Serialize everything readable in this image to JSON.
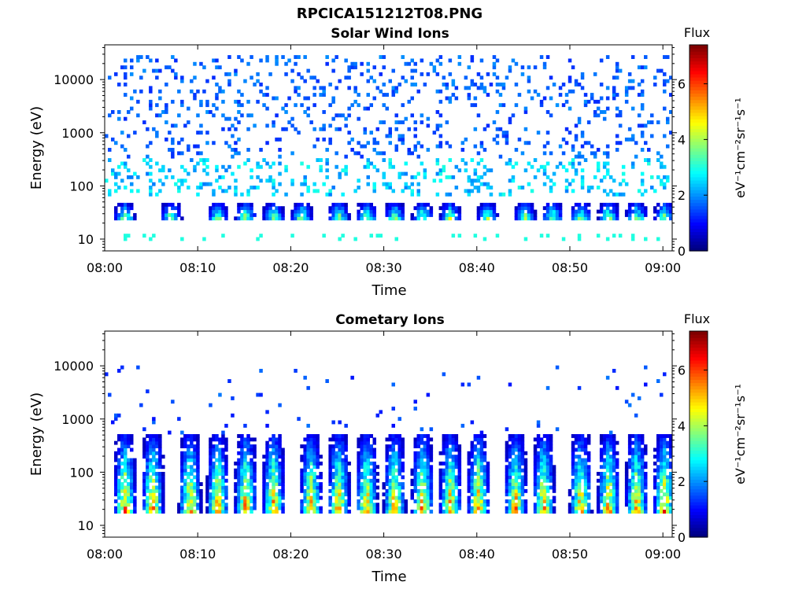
{
  "figure": {
    "title": "RPCICA151212T08.PNG"
  },
  "chart_data": [
    {
      "type": "heatmap",
      "title": "Solar Wind Ions",
      "xlabel": "Time",
      "ylabel": "Energy (eV)",
      "x_ticks": [
        "08:00",
        "08:10",
        "08:20",
        "08:30",
        "08:40",
        "08:50",
        "09:00"
      ],
      "x_range": [
        "08:00",
        "09:01"
      ],
      "y_scale": "log",
      "y_ticks": [
        "10",
        "100",
        "1000",
        "10000"
      ],
      "y_range": [
        6,
        45000
      ],
      "colorbar": {
        "label": "Flux",
        "unit": "eV⁻¹cm⁻²sr⁻¹s⁻¹",
        "ticks": [
          "0",
          "2",
          "4",
          "6"
        ],
        "range": [
          0,
          7.4
        ],
        "colormap": "jet"
      },
      "features": {
        "sparse_high_energy_flux": {
          "energy_range_eV": [
            300,
            25000
          ],
          "typical_flux": 1.2
        },
        "low_energy_bursts": {
          "energy_range_eV": [
            20,
            45
          ],
          "times": [
            "08:02",
            "08:07",
            "08:12",
            "08:15",
            "08:18",
            "08:21",
            "08:25",
            "08:28",
            "08:31",
            "08:34",
            "08:37",
            "08:41",
            "08:45",
            "08:48",
            "08:51",
            "08:54",
            "08:57",
            "09:00"
          ],
          "peak_flux": 5.8
        },
        "band_10eV": {
          "energy_eV": 10,
          "typical_flux": 3.0
        }
      }
    },
    {
      "type": "heatmap",
      "title": "Cometary Ions",
      "xlabel": "Time",
      "ylabel": "Energy (eV)",
      "x_ticks": [
        "08:00",
        "08:10",
        "08:20",
        "08:30",
        "08:40",
        "08:50",
        "09:00"
      ],
      "x_range": [
        "08:00",
        "09:01"
      ],
      "y_scale": "log",
      "y_ticks": [
        "10",
        "100",
        "1000",
        "10000"
      ],
      "y_range": [
        6,
        45000
      ],
      "colorbar": {
        "label": "Flux",
        "unit": "eV⁻¹cm⁻²sr⁻¹s⁻¹",
        "ticks": [
          "0",
          "2",
          "4",
          "6"
        ],
        "range": [
          0,
          7.4
        ],
        "colormap": "jet"
      },
      "features": {
        "sparse_high_energy_flux": {
          "energy_range_eV": [
            500,
            10000
          ],
          "typical_flux": 1.0
        },
        "periodic_bursts": {
          "energy_range_eV": [
            15,
            450
          ],
          "times": [
            "08:02",
            "08:05",
            "08:09",
            "08:12",
            "08:15",
            "08:18",
            "08:22",
            "08:25",
            "08:28",
            "08:31",
            "08:34",
            "08:37",
            "08:40",
            "08:44",
            "08:47",
            "08:51",
            "08:54",
            "08:57",
            "09:00"
          ],
          "peak_flux": 7.2
        }
      }
    }
  ]
}
